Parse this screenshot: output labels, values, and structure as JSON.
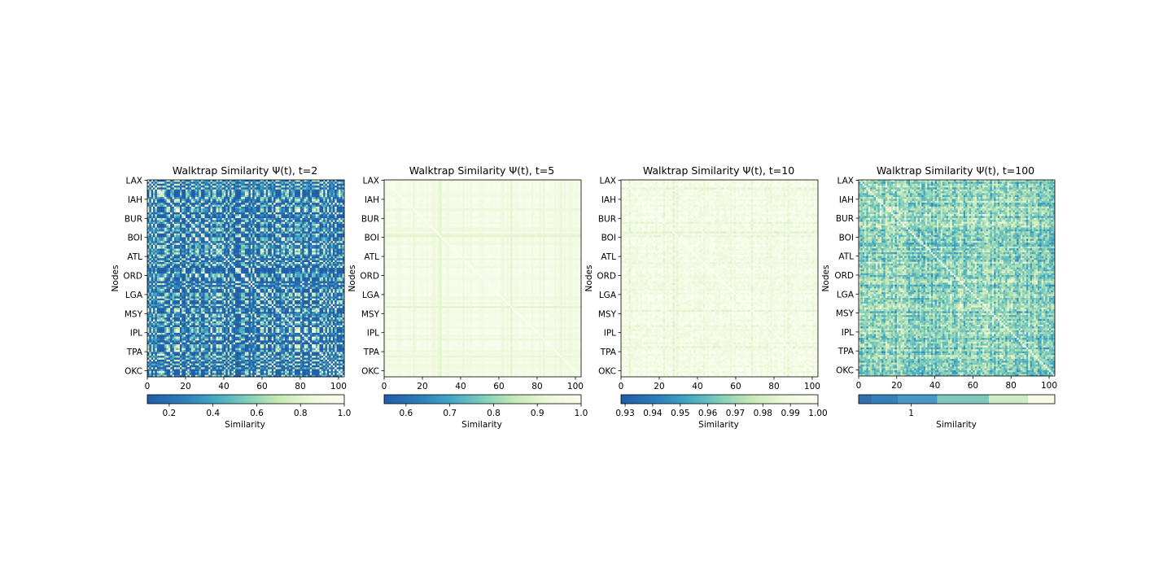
{
  "chart_data": [
    {
      "type": "heatmap",
      "title": "Walktrap Similarity Ψ(t), t=2",
      "ylabel": "Nodes",
      "xlim": [
        0,
        103
      ],
      "x_ticks": [
        0,
        20,
        40,
        60,
        80,
        100
      ],
      "y_tick_labels": [
        "LAX",
        "IAH",
        "BUR",
        "BOI",
        "ATL",
        "ORD",
        "LGA",
        "MSY",
        "IPL",
        "TPA",
        "OKC"
      ],
      "colorbar": {
        "label": "Similarity",
        "range": [
          0.1,
          1.0
        ],
        "ticks": [
          "0.2",
          "0.4",
          "0.6",
          "0.8",
          "1.0"
        ],
        "discrete": false
      },
      "value_range": [
        0.1,
        1.0
      ],
      "matrix_size": 103,
      "pattern": "blocky"
    },
    {
      "type": "heatmap",
      "title": "Walktrap Similarity Ψ(t), t=5",
      "ylabel": "Nodes",
      "xlim": [
        0,
        103
      ],
      "x_ticks": [
        0,
        20,
        40,
        60,
        80,
        100
      ],
      "y_tick_labels": [
        "LAX",
        "IAH",
        "BUR",
        "BOI",
        "ATL",
        "ORD",
        "LGA",
        "MSY",
        "IPL",
        "TPA",
        "OKC"
      ],
      "colorbar": {
        "label": "Similarity",
        "range": [
          0.55,
          1.0
        ],
        "ticks": [
          "0.6",
          "0.7",
          "0.8",
          "0.9",
          "1.0"
        ],
        "discrete": false
      },
      "value_range": [
        0.82,
        1.0
      ],
      "matrix_size": 103,
      "pattern": "stripes"
    },
    {
      "type": "heatmap",
      "title": "Walktrap Similarity Ψ(t), t=10",
      "ylabel": "Nodes",
      "xlim": [
        0,
        103
      ],
      "x_ticks": [
        0,
        20,
        40,
        60,
        80,
        100
      ],
      "y_tick_labels": [
        "LAX",
        "IAH",
        "BUR",
        "BOI",
        "ATL",
        "ORD",
        "LGA",
        "MSY",
        "IPL",
        "TPA",
        "OKC"
      ],
      "colorbar": {
        "label": "Similarity",
        "range": [
          0.9285,
          1.0
        ],
        "ticks": [
          "0.93",
          "0.94",
          "0.95",
          "0.96",
          "0.97",
          "0.98",
          "0.99",
          "1.00"
        ],
        "discrete": false
      },
      "value_range": [
        0.968,
        1.0
      ],
      "matrix_size": 103,
      "pattern": "stripes"
    },
    {
      "type": "heatmap",
      "title": "Walktrap Similarity Ψ(t), t=100",
      "ylabel": "Nodes",
      "xlim": [
        0,
        103
      ],
      "x_ticks": [
        0,
        20,
        40,
        60,
        80,
        100
      ],
      "y_tick_labels": [
        "LAX",
        "IAH",
        "BUR",
        "BOI",
        "ATL",
        "ORD",
        "LGA",
        "MSY",
        "IPL",
        "TPA",
        "OKC"
      ],
      "colorbar": {
        "label": "Similarity",
        "range": [
          0,
          1
        ],
        "ticks": [
          "1"
        ],
        "discrete": true,
        "bands": [
          0.0,
          0.066,
          0.2,
          0.4,
          0.664,
          0.864,
          1.0
        ],
        "band_colors": [
          "#2f6fad",
          "#3480ba",
          "#4898c7",
          "#80c9bf",
          "#cdebc5",
          "#f7fce7"
        ]
      },
      "value_range": [
        0.15,
        0.9
      ],
      "matrix_size": 103,
      "pattern": "noisy"
    }
  ],
  "colors": {
    "colormap": [
      "#225ea8",
      "#2b7bba",
      "#41a6c3",
      "#7fcdbb",
      "#c7e9b4",
      "#edf8d9",
      "#fafdf0"
    ]
  }
}
